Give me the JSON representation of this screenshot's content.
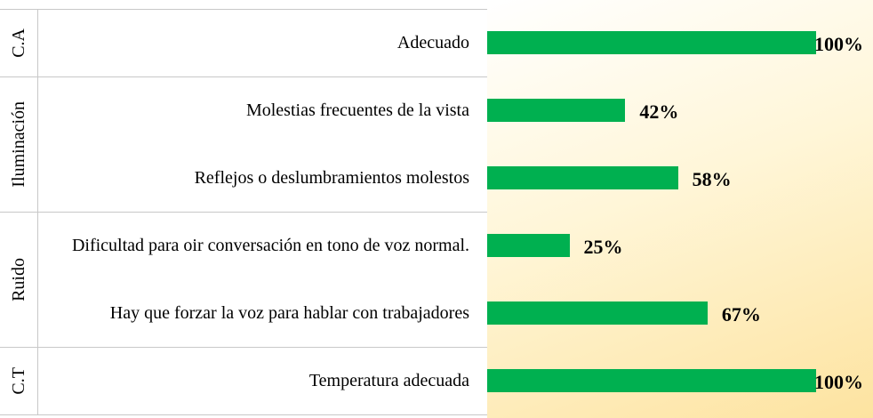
{
  "chart_data": {
    "type": "bar",
    "orientation": "horizontal",
    "color": "#00b050",
    "groups": [
      {
        "name": "C.A",
        "categories": [
          "Adecuado"
        ],
        "values": [
          100
        ],
        "value_labels": [
          "100%"
        ]
      },
      {
        "name": "Iluminación",
        "categories": [
          "Molestias frecuentes de la vista",
          "Reflejos o deslumbramientos molestos"
        ],
        "values": [
          42,
          58
        ],
        "value_labels": [
          "42%",
          "58%"
        ]
      },
      {
        "name": "Ruido",
        "categories": [
          "Dificultad para oir conversación en tono de voz normal.",
          "Hay que forzar la voz para hablar con trabajadores"
        ],
        "values": [
          25,
          67
        ],
        "value_labels": [
          "25%",
          "67%"
        ]
      },
      {
        "name": "C.T",
        "categories": [
          "Temperatura adecuada"
        ],
        "values": [
          100
        ],
        "value_labels": [
          "100%"
        ]
      }
    ]
  }
}
